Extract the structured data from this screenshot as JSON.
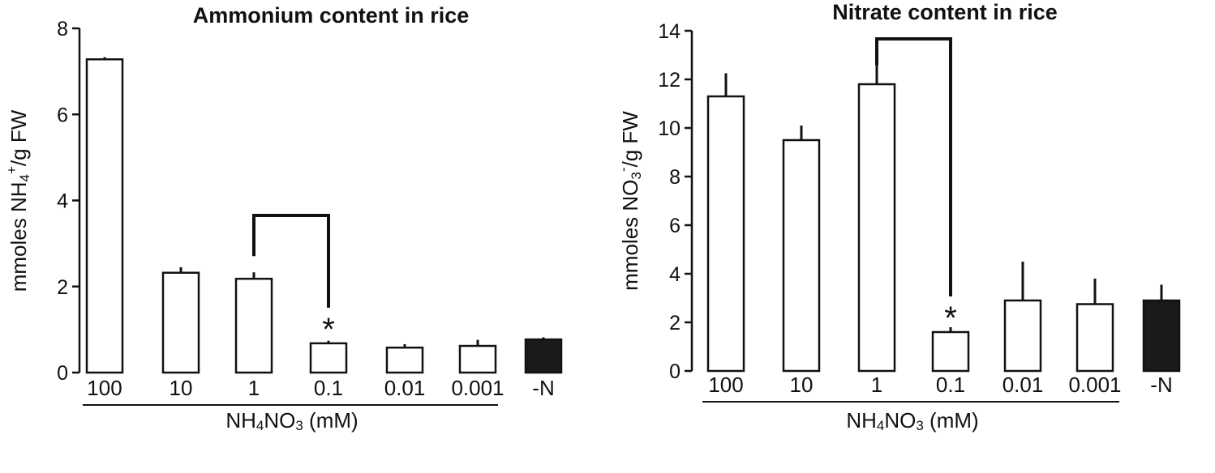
{
  "chart_data": [
    {
      "type": "bar",
      "title": "Ammonium content in rice",
      "ylabel": "mmoles NH4+/g FW",
      "xlabel": "NH4NO3 (mM)",
      "categories": [
        "100",
        "10",
        "1",
        "0.1",
        "0.01",
        "0.001",
        "-N"
      ],
      "values": [
        7.28,
        2.32,
        2.18,
        0.68,
        0.58,
        0.62,
        0.77
      ],
      "errors": [
        0.05,
        0.13,
        0.15,
        0.06,
        0.08,
        0.14,
        0.05
      ],
      "yticks": [
        "0",
        "2",
        "4",
        "6",
        "8"
      ],
      "ylim": [
        0,
        8
      ],
      "bar_fill": [
        "#ffffff",
        "#ffffff",
        "#ffffff",
        "#ffffff",
        "#ffffff",
        "#ffffff",
        "#1a1a1a"
      ],
      "significance": {
        "from_category": "1",
        "to_category": "0.1",
        "marker": "*"
      }
    },
    {
      "type": "bar",
      "title": "Nitrate content in rice",
      "ylabel": "mmoles NO3-/g FW",
      "xlabel": "NH4NO3 (mM)",
      "categories": [
        "100",
        "10",
        "1",
        "0.1",
        "0.01",
        "0.001",
        "-N"
      ],
      "values": [
        11.3,
        9.5,
        11.8,
        1.6,
        2.9,
        2.75,
        2.9
      ],
      "errors": [
        0.95,
        0.6,
        0.85,
        0.2,
        1.6,
        1.05,
        0.65
      ],
      "yticks": [
        "0",
        "2",
        "4",
        "6",
        "8",
        "10",
        "12",
        "14"
      ],
      "ylim": [
        0,
        14
      ],
      "bar_fill": [
        "#ffffff",
        "#ffffff",
        "#ffffff",
        "#ffffff",
        "#ffffff",
        "#ffffff",
        "#1a1a1a"
      ],
      "significance": {
        "from_category": "1",
        "to_category": "0.1",
        "marker": "*"
      }
    }
  ]
}
